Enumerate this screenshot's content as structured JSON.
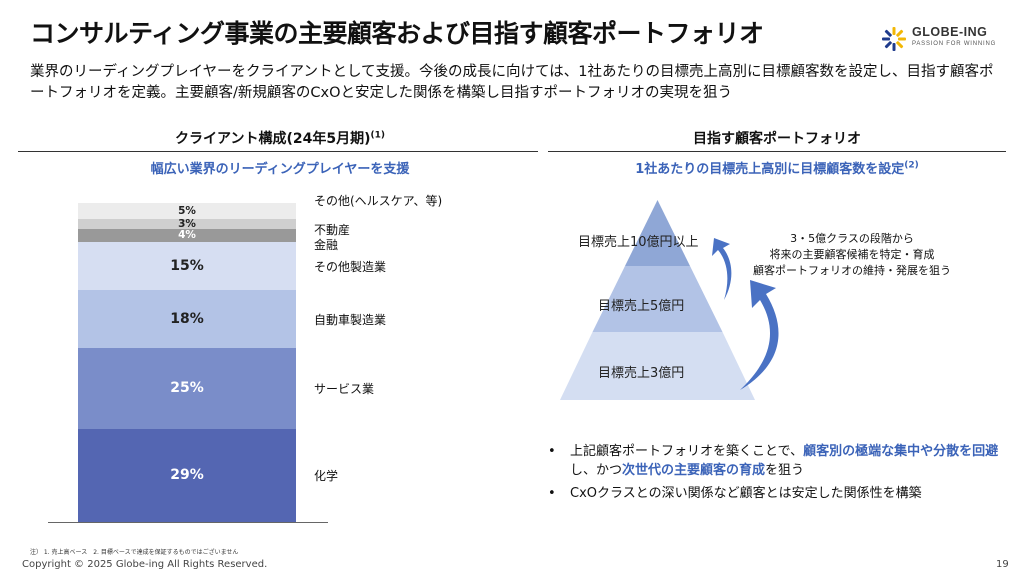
{
  "title": "コンサルティング事業の主要顧客および目指す顧客ポートフォリオ",
  "logo": {
    "name": "GLOBE-ING",
    "tagline": "PASSION FOR WINNING"
  },
  "lead": "業界のリーディングプレイヤーをクライアントとして支援。今後の成長に向けては、1社あたりの目標売上高別に目標顧客数を設定し、目指す顧客ポートフォリオを定義。主要顧客/新規顧客のCxOと安定した関係を構築し目指すポートフォリオの実現を狙う",
  "left": {
    "heading": "クライアント構成(24年5月期)",
    "heading_note": "(1)",
    "subheading": "幅広い業界のリーディングプレイヤーを支援"
  },
  "right": {
    "heading": "目指す顧客ポートフォリオ",
    "subheading": "1社あたりの目標売上高別に目標顧客数を設定",
    "subheading_note": "(2)",
    "tiers": [
      "目標売上10億円以上",
      "目標売上5億円",
      "目標売上3億円"
    ],
    "callout": [
      "3・5億クラスの段階から",
      "将来の主要顧客候補を特定・育成",
      "顧客ポートフォリオの維持・発展を狙う"
    ],
    "bullets": [
      {
        "parts": [
          {
            "text": "上記顧客ポートフォリオを築くことで、",
            "hl": false
          },
          {
            "text": "顧客別の極端な集中や分散を回避",
            "hl": true
          },
          {
            "text": "し、かつ",
            "hl": false
          },
          {
            "text": "次世代の主要顧客の育成",
            "hl": true
          },
          {
            "text": "を狙う",
            "hl": false
          }
        ]
      },
      {
        "parts": [
          {
            "text": "CxOクラスとの深い関係など顧客とは安定した関係性を構築",
            "hl": false
          }
        ]
      }
    ],
    "colors": {
      "tier_top": "#8fa7d6",
      "tier_mid": "#b2c3e6",
      "tier_bottom": "#d4def2",
      "arrow": "#4a72c4"
    }
  },
  "chart_data": {
    "type": "bar",
    "stacked": true,
    "unit": "%",
    "ylim": [
      0,
      100
    ],
    "series": [
      {
        "name": "化学",
        "value": 29,
        "label": "29%",
        "color": "#5466b2",
        "text_color": "#ffffff"
      },
      {
        "name": "サービス業",
        "value": 25,
        "label": "25%",
        "color": "#7a8dc9",
        "text_color": "#ffffff"
      },
      {
        "name": "自動車製造業",
        "value": 18,
        "label": "18%",
        "color": "#b3c3e6",
        "text_color": "#222222"
      },
      {
        "name": "その他製造業",
        "value": 15,
        "label": "15%",
        "color": "#d6def2",
        "text_color": "#222222"
      },
      {
        "name": "金融",
        "value": 4,
        "label": "4%",
        "color": "#999999",
        "text_color": "#ffffff"
      },
      {
        "name": "不動産",
        "value": 3,
        "label": "3%",
        "color": "#cfcfcf",
        "text_color": "#222222"
      },
      {
        "name": "その他(ヘルスケア、等)",
        "value": 5,
        "label": "5%",
        "color": "#ececec",
        "text_color": "#222222"
      }
    ]
  },
  "footnote": "注） 1. 売上高ベース　2. 目標ベースで達成を保証するものではございません",
  "copyright": "Copyright © 2025 Globe-ing All Rights Reserved.",
  "page_number": "19"
}
